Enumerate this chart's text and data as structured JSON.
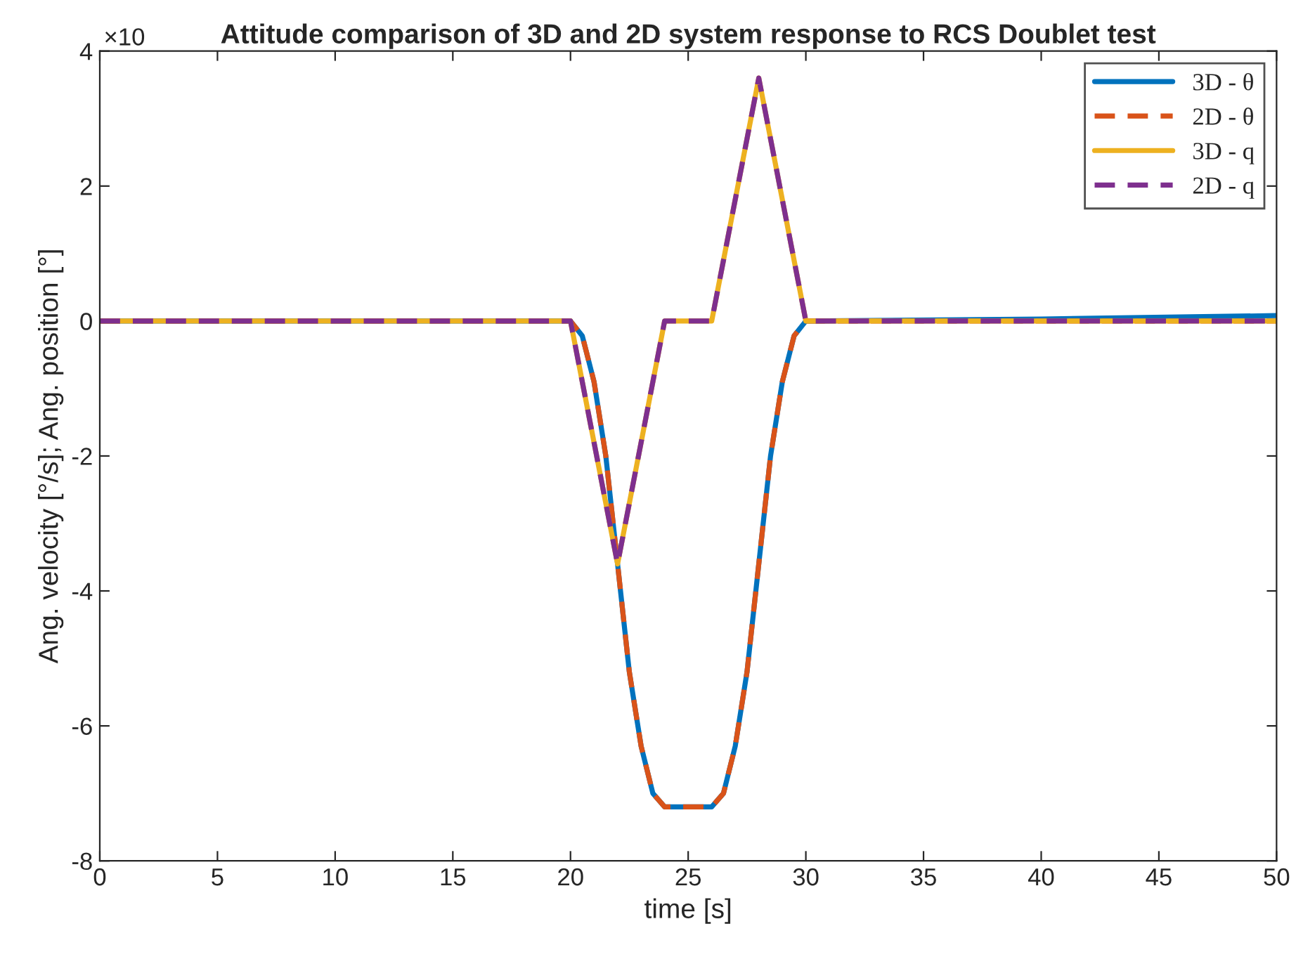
{
  "chart_data": {
    "type": "line",
    "title": "Attitude comparison of 3D and 2D system response to RCS Doublet test",
    "xlabel": "time [s]",
    "ylabel": "Ang. velocity [°/s]; Ang. position [°]",
    "annotations": [
      "×10"
    ],
    "xlim": [
      0,
      50
    ],
    "ylim": [
      -8,
      4
    ],
    "xticks": [
      0,
      5,
      10,
      15,
      20,
      25,
      30,
      35,
      40,
      45,
      50
    ],
    "yticks": [
      -8,
      -6,
      -4,
      -2,
      0,
      2,
      4
    ],
    "grid": false,
    "legend": "top right",
    "marker": "none",
    "series": [
      {
        "name": "3D - θ",
        "color": "#0072bd",
        "line_style": "solid",
        "x": [
          0,
          20,
          20.5,
          21,
          21.5,
          22,
          22.5,
          23,
          23.5,
          24,
          26,
          26.5,
          27,
          27.5,
          28,
          28.5,
          29,
          29.5,
          30,
          40,
          50
        ],
        "values": [
          0,
          0,
          -0.22,
          -0.9,
          -2.0,
          -3.6,
          -5.2,
          -6.3,
          -7.0,
          -7.2,
          -7.2,
          -7.0,
          -6.3,
          -5.2,
          -3.6,
          -2.0,
          -0.9,
          -0.22,
          0,
          0.03,
          0.08
        ]
      },
      {
        "name": "2D - θ",
        "color": "#d95319",
        "line_style": "dashed",
        "x": [
          0,
          20,
          20.5,
          21,
          21.5,
          22,
          22.5,
          23,
          23.5,
          24,
          26,
          26.5,
          27,
          27.5,
          28,
          28.5,
          29,
          29.5,
          30,
          50
        ],
        "values": [
          0,
          0,
          -0.22,
          -0.9,
          -2.0,
          -3.6,
          -5.2,
          -6.3,
          -7.0,
          -7.2,
          -7.2,
          -7.0,
          -6.3,
          -5.2,
          -3.6,
          -2.0,
          -0.9,
          -0.22,
          0,
          0
        ]
      },
      {
        "name": "3D - q",
        "color": "#edb120",
        "line_style": "solid",
        "x": [
          0,
          20,
          22,
          24,
          26,
          28,
          30,
          50
        ],
        "values": [
          0,
          0,
          -3.6,
          0,
          0,
          3.6,
          0,
          0
        ]
      },
      {
        "name": "2D - q",
        "color": "#7e2f8e",
        "line_style": "dashed",
        "x": [
          0,
          20,
          22,
          24,
          26,
          28,
          30,
          50
        ],
        "values": [
          0,
          0,
          -3.6,
          0,
          0,
          3.6,
          0,
          0
        ]
      }
    ]
  }
}
